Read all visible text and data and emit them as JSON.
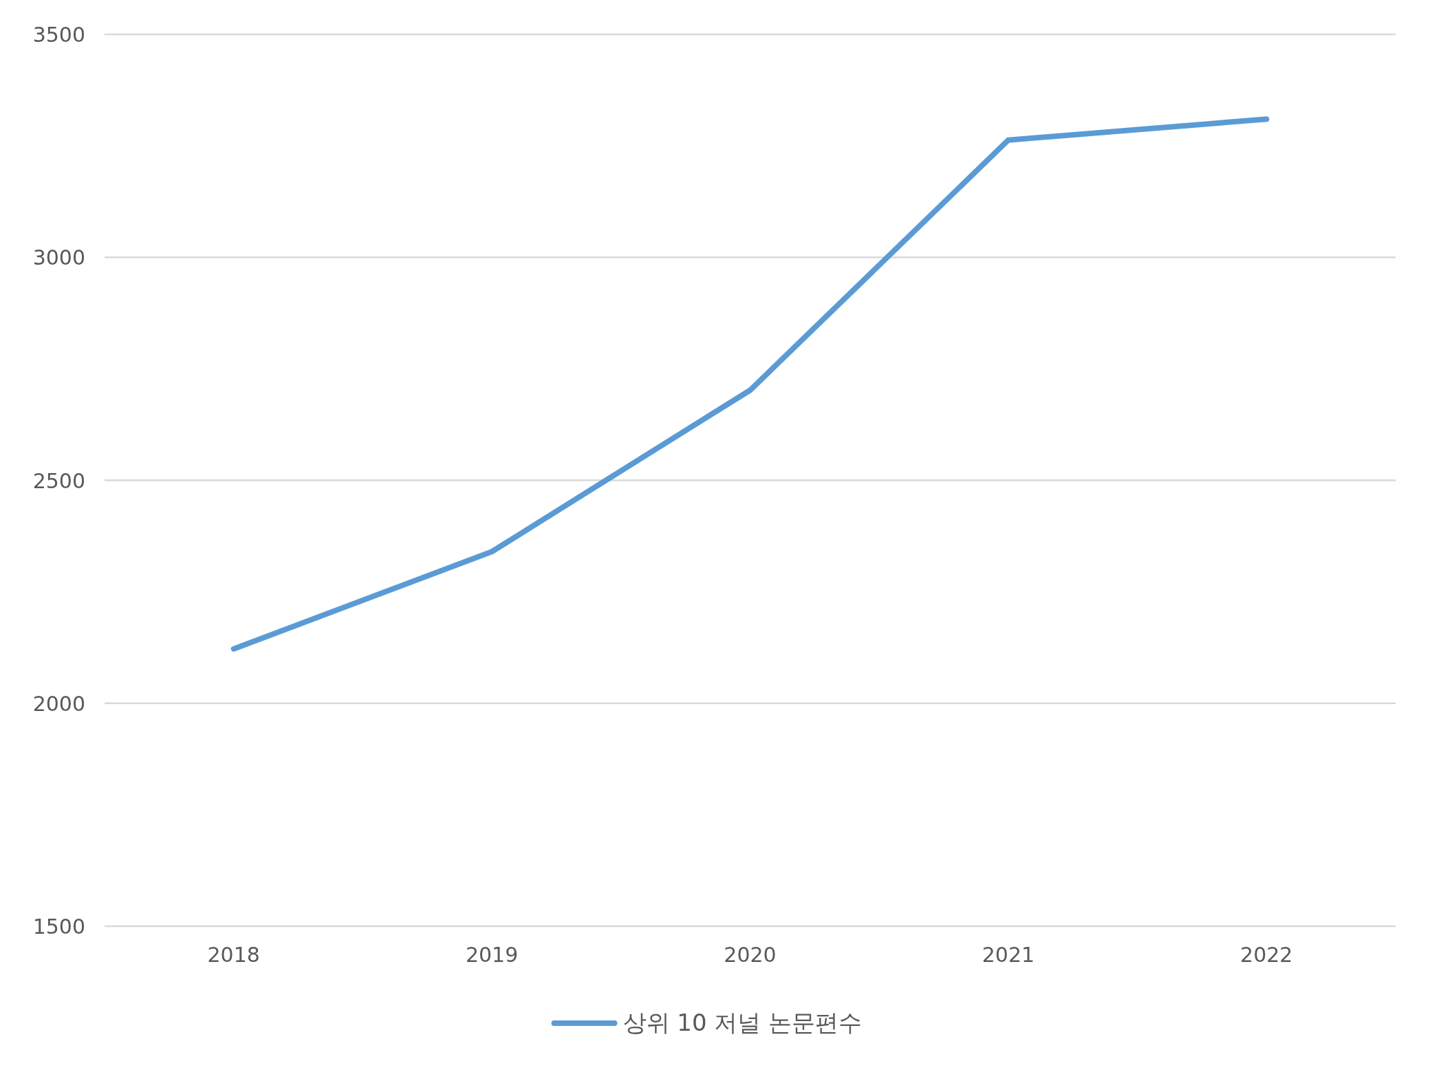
{
  "chart_data": {
    "type": "line",
    "categories": [
      "2018",
      "2019",
      "2020",
      "2021",
      "2022"
    ],
    "series": [
      {
        "name": "상위 10 저널 논문편수",
        "color": "#5b9bd5",
        "values": [
          2122,
          2340,
          2702,
          3263,
          3310
        ]
      }
    ],
    "ylim": [
      1500,
      3500
    ],
    "yticks": [
      1500,
      2000,
      2500,
      3000,
      3500
    ],
    "grid": "y",
    "legend": "bottom"
  }
}
